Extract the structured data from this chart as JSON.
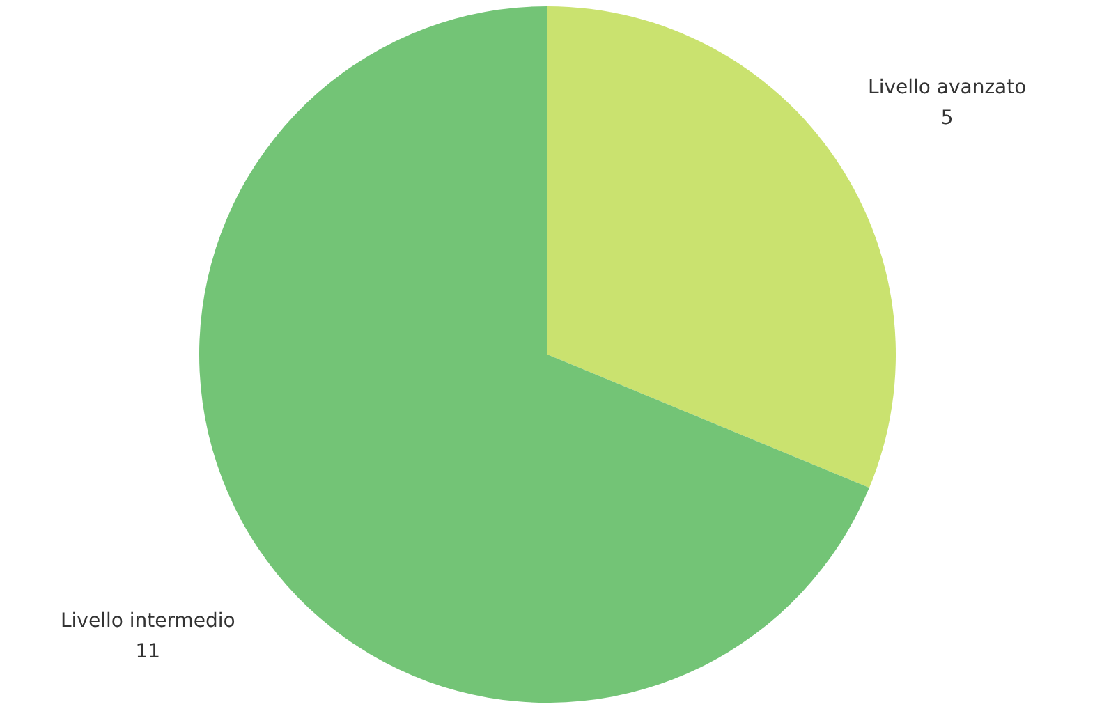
{
  "chart_data": {
    "type": "pie",
    "categories": [
      "Livello avanzato",
      "Livello intermedio"
    ],
    "values": [
      5,
      11
    ],
    "colors": [
      "#cae26f",
      "#73c476"
    ],
    "data_labels": true
  }
}
